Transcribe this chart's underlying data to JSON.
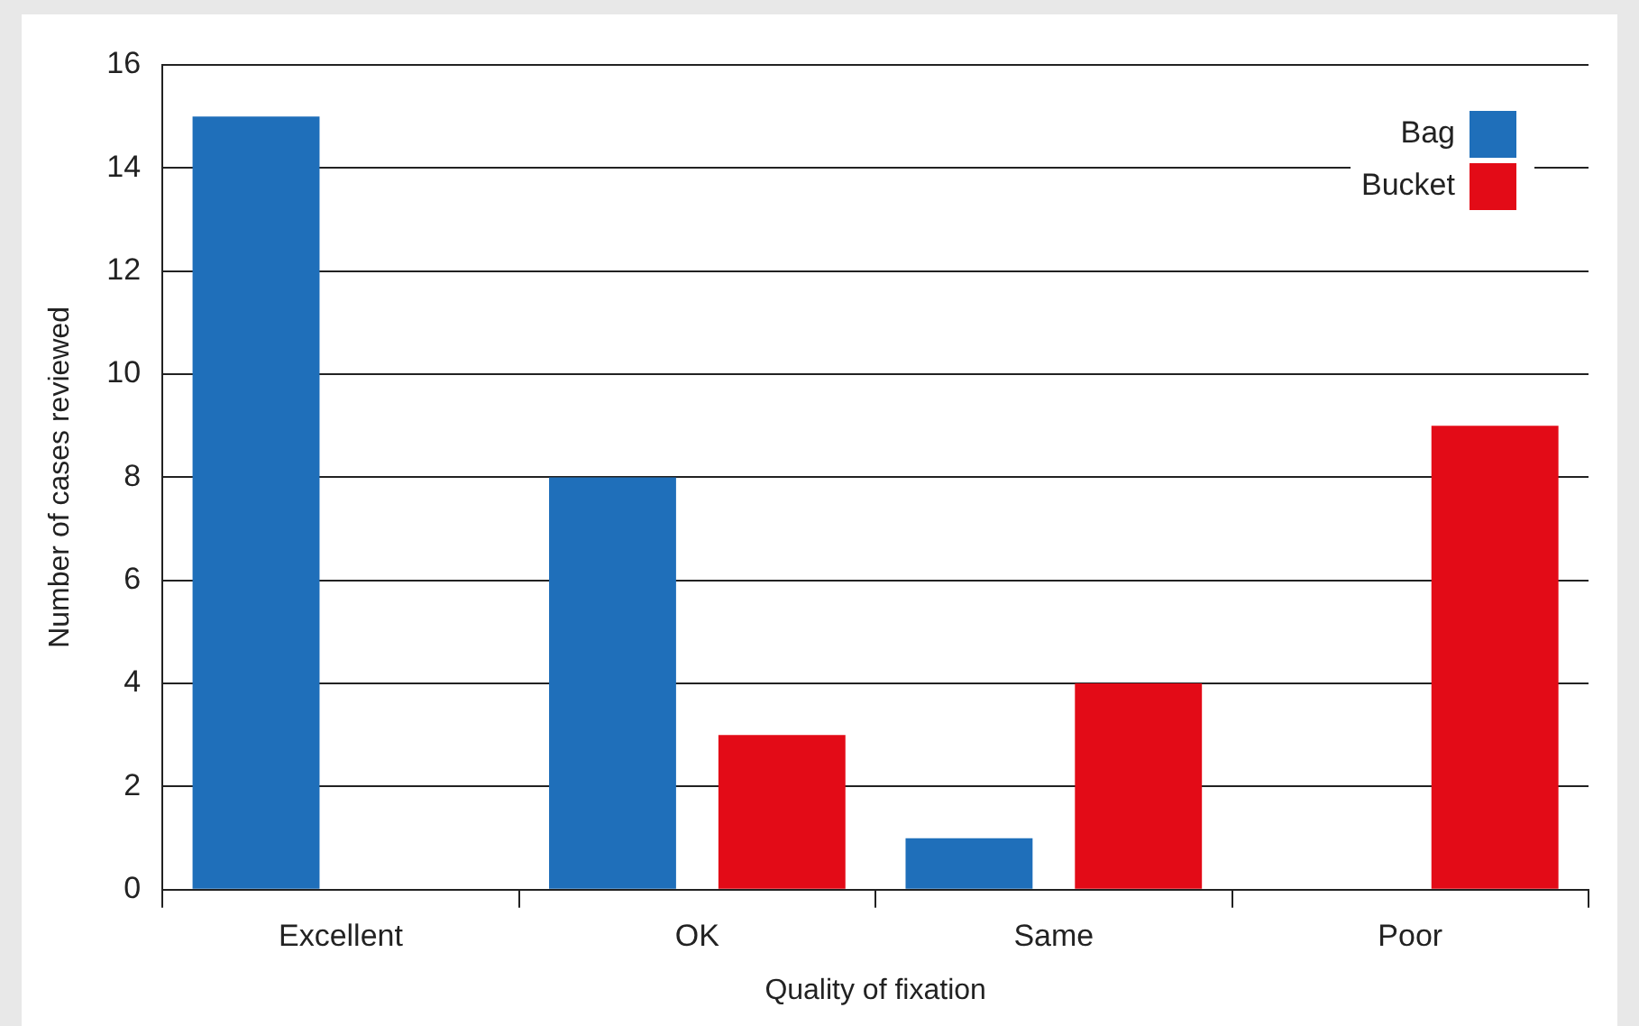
{
  "chart_data": {
    "type": "bar",
    "xlabel": "Quality of fixation",
    "ylabel": "Number of cases reviewed",
    "categories": [
      "Excellent",
      "OK",
      "Same",
      "Poor"
    ],
    "series": [
      {
        "name": "Bag",
        "color": "#1f6fba",
        "values": [
          15,
          8,
          1,
          0
        ]
      },
      {
        "name": "Bucket",
        "color": "#e30b17",
        "values": [
          0,
          3,
          4,
          9
        ]
      }
    ],
    "ylim": [
      0,
      16
    ],
    "yticks": [
      0,
      2,
      4,
      6,
      8,
      10,
      12,
      14,
      16
    ],
    "grid": "y",
    "legend": "top right"
  }
}
